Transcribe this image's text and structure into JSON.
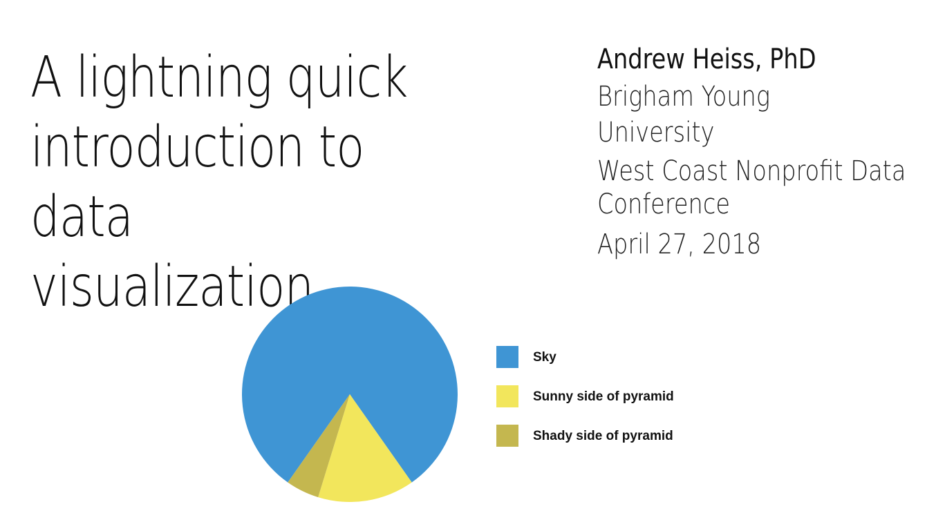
{
  "slide": {
    "title_lines": [
      "A lightning quick",
      "introduction to data",
      "visualization"
    ],
    "author": "Andrew Heiss, PhD",
    "affiliation": "Brigham Young University",
    "conference_lines": [
      "West Coast Nonprofit Data",
      "Conference"
    ],
    "date": "April 27, 2018"
  },
  "chart_data": {
    "type": "pie",
    "slices": [
      {
        "label": "Sky",
        "value": 80.5,
        "color": "#3f95d4"
      },
      {
        "label": "Sunny side of pyramid",
        "value": 14.5,
        "color": "#f2e65c"
      },
      {
        "label": "Shady side of pyramid",
        "value": 5.0,
        "color": "#c4b74f"
      }
    ],
    "legend_position": "right"
  }
}
